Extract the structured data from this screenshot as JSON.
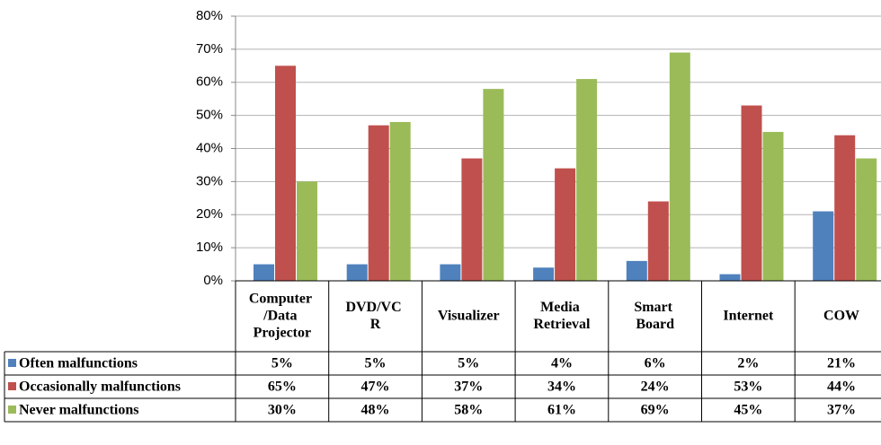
{
  "chart_data": {
    "type": "bar",
    "categories": [
      "Computer /Data Projector",
      "DVD/VC R",
      "Visualizer",
      "Media Retrieval",
      "Smart Board",
      "Internet",
      "COW"
    ],
    "series": [
      {
        "name": "Often malfunctions",
        "color": "#4f81bd",
        "values": [
          5,
          5,
          5,
          4,
          6,
          2,
          21
        ],
        "value_labels": [
          "5%",
          "5%",
          "5%",
          "4%",
          "6%",
          "2%",
          "21%"
        ]
      },
      {
        "name": "Occasionally malfunctions",
        "color": "#c0504d",
        "values": [
          65,
          47,
          37,
          34,
          24,
          53,
          44
        ],
        "value_labels": [
          "65%",
          "47%",
          "37%",
          "34%",
          "24%",
          "53%",
          "44%"
        ]
      },
      {
        "name": "Never malfunctions",
        "color": "#9bbb59",
        "values": [
          30,
          48,
          58,
          61,
          69,
          45,
          37
        ],
        "value_labels": [
          "30%",
          "48%",
          "58%",
          "61%",
          "69%",
          "45%",
          "37%"
        ]
      }
    ],
    "ylim": [
      0,
      80
    ],
    "yticks": [
      {
        "value": 0,
        "label": "0%"
      },
      {
        "value": 10,
        "label": "10%"
      },
      {
        "value": 20,
        "label": "20%"
      },
      {
        "value": 30,
        "label": "30%"
      },
      {
        "value": 40,
        "label": "40%"
      },
      {
        "value": 50,
        "label": "50%"
      },
      {
        "value": 60,
        "label": "60%"
      },
      {
        "value": 70,
        "label": "70%"
      },
      {
        "value": 80,
        "label": "80%"
      }
    ],
    "grid": true
  }
}
